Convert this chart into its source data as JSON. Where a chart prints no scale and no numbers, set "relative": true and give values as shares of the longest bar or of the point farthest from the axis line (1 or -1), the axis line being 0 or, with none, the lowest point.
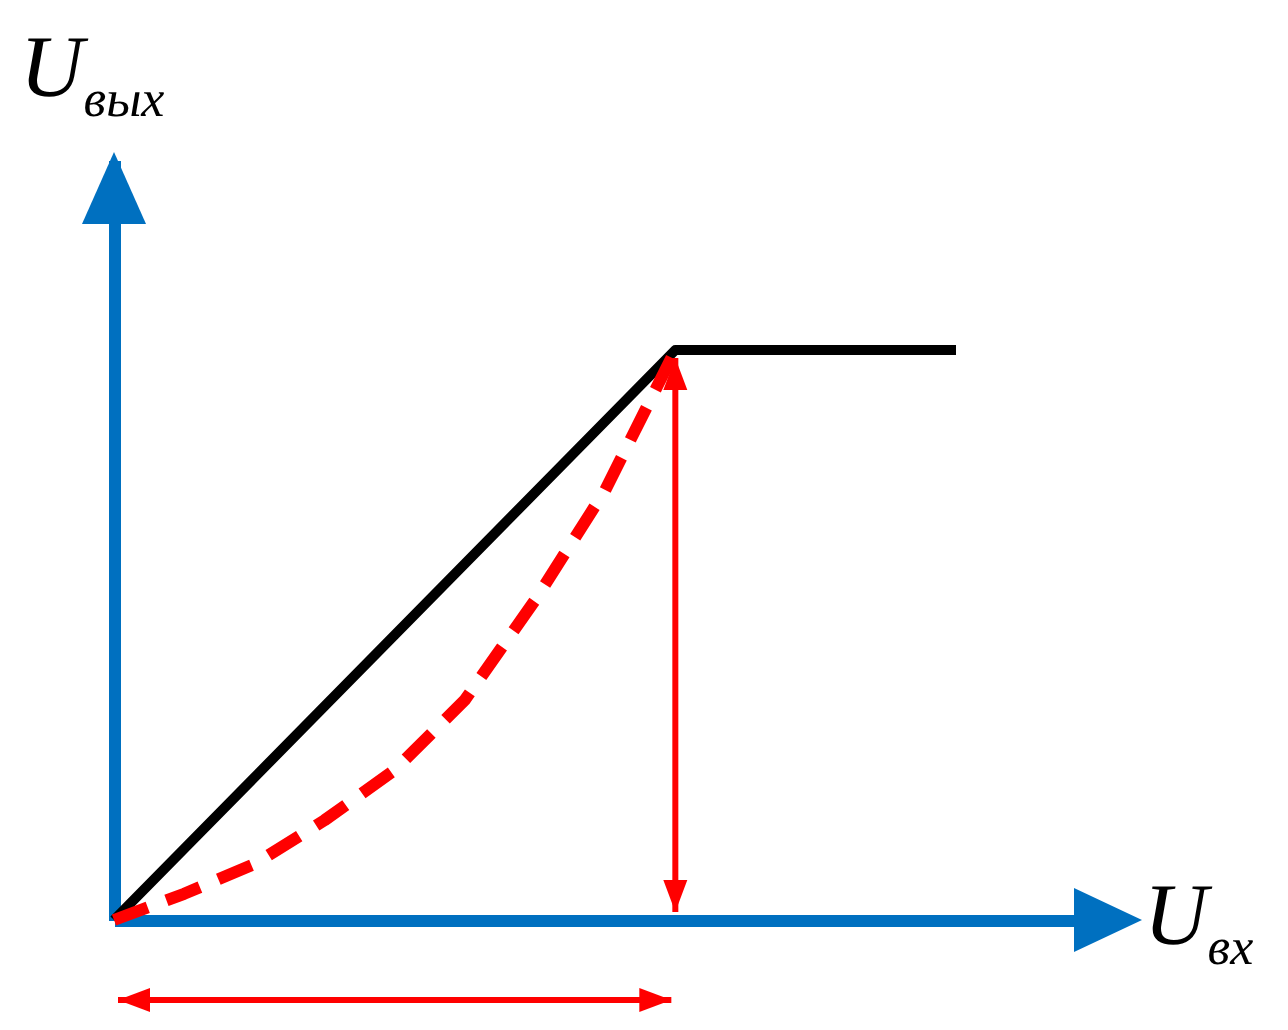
{
  "chart_data": {
    "type": "line",
    "relative": true,
    "xlabel": "U$_{вх}$",
    "ylabel": "U$_{вых}$",
    "categories": [
      null,
      null,
      null,
      null,
      null,
      null,
      null,
      null,
      null,
      null,
      null,
      null,
      null
    ],
    "series": [
      {
        "color": "#000000",
        "line_style": "solid",
        "values": [
          0,
          0.125,
          0.25,
          0.375,
          0.5,
          0.625,
          0.75,
          0.875,
          1,
          1,
          1,
          1,
          1
        ]
      },
      {
        "color": "#ff0000",
        "line_style": "dashed",
        "values": [
          0,
          0.046,
          0.098,
          0.175,
          0.263,
          0.386,
          0.561,
          0.754,
          1,
          null,
          null,
          null,
          null
        ]
      }
    ],
    "grid": false,
    "marker": "none"
  }
}
